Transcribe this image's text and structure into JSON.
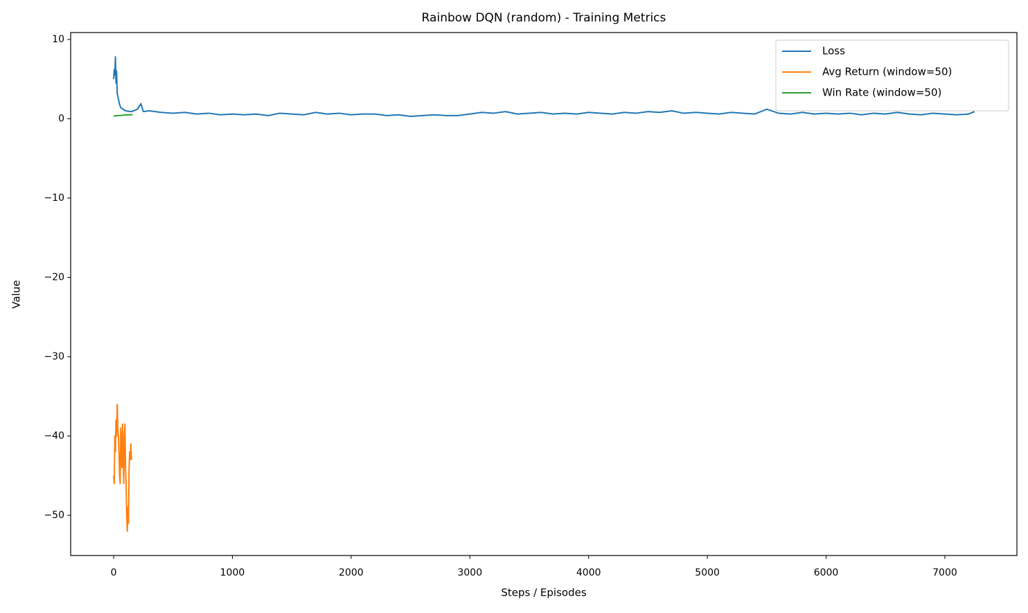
{
  "chart_data": {
    "type": "line",
    "title": "Rainbow DQN (random) - Training Metrics",
    "xlabel": "Steps / Episodes",
    "ylabel": "Value",
    "xlim": [
      -362,
      7607
    ],
    "ylim": [
      -55.07,
      10.87
    ],
    "xticks": [
      0,
      1000,
      2000,
      3000,
      4000,
      5000,
      6000,
      7000
    ],
    "yticks": [
      {
        "value": -50,
        "label": "−50"
      },
      {
        "value": -40,
        "label": "−40"
      },
      {
        "value": -30,
        "label": "−30"
      },
      {
        "value": -20,
        "label": "−20"
      },
      {
        "value": -10,
        "label": "−10"
      },
      0,
      10
    ],
    "legend": "upper right",
    "series": [
      {
        "name": "Loss",
        "color": "#1f77b4",
        "x": [
          0,
          5,
          10,
          15,
          20,
          25,
          30,
          40,
          50,
          60,
          80,
          100,
          150,
          200,
          230,
          250,
          300,
          400,
          500,
          600,
          700,
          800,
          900,
          1000,
          1100,
          1200,
          1300,
          1400,
          1500,
          1600,
          1700,
          1800,
          1900,
          2000,
          2100,
          2200,
          2300,
          2400,
          2500,
          2600,
          2700,
          2800,
          2900,
          3000,
          3100,
          3200,
          3300,
          3400,
          3500,
          3600,
          3700,
          3800,
          3900,
          4000,
          4100,
          4200,
          4300,
          4400,
          4500,
          4600,
          4700,
          4800,
          4900,
          5000,
          5100,
          5200,
          5300,
          5400,
          5500,
          5600,
          5700,
          5800,
          5900,
          6000,
          6100,
          6200,
          6300,
          6400,
          6500,
          6600,
          6700,
          6800,
          6900,
          7000,
          7100,
          7200,
          7250
        ],
        "values": [
          5.0,
          6.2,
          5.5,
          7.8,
          4.5,
          6.0,
          3.2,
          2.5,
          1.8,
          1.4,
          1.2,
          1.0,
          0.9,
          1.2,
          1.9,
          0.9,
          1.0,
          0.8,
          0.7,
          0.8,
          0.6,
          0.7,
          0.5,
          0.6,
          0.5,
          0.6,
          0.4,
          0.7,
          0.6,
          0.5,
          0.8,
          0.6,
          0.7,
          0.5,
          0.6,
          0.6,
          0.4,
          0.5,
          0.3,
          0.4,
          0.5,
          0.4,
          0.4,
          0.6,
          0.8,
          0.7,
          0.9,
          0.6,
          0.7,
          0.8,
          0.6,
          0.7,
          0.6,
          0.8,
          0.7,
          0.6,
          0.8,
          0.7,
          0.9,
          0.8,
          1.0,
          0.7,
          0.8,
          0.7,
          0.6,
          0.8,
          0.7,
          0.6,
          1.2,
          0.7,
          0.6,
          0.8,
          0.6,
          0.7,
          0.6,
          0.7,
          0.5,
          0.7,
          0.6,
          0.8,
          0.6,
          0.5,
          0.7,
          0.6,
          0.5,
          0.6,
          0.9
        ]
      },
      {
        "name": "Avg Return (window=50)",
        "color": "#ff7f0e",
        "x": [
          0,
          5,
          10,
          15,
          20,
          25,
          30,
          35,
          40,
          45,
          50,
          55,
          60,
          65,
          70,
          75,
          80,
          85,
          90,
          95,
          100,
          105,
          110,
          115,
          120,
          125,
          130,
          135,
          140,
          145,
          150
        ],
        "values": [
          -45,
          -46,
          -40,
          -42,
          -38,
          -40,
          -36,
          -39,
          -40,
          -42,
          -45,
          -46,
          -39,
          -41,
          -44,
          -38.5,
          -42,
          -46,
          -40,
          -38.5,
          -44,
          -46,
          -50,
          -52,
          -49,
          -51,
          -44,
          -42,
          -43,
          -41,
          -43
        ]
      },
      {
        "name": "Win Rate (window=50)",
        "color": "#2ca02c",
        "x": [
          0,
          20,
          40,
          60,
          80,
          100,
          120,
          140,
          160
        ],
        "values": [
          0.35,
          0.38,
          0.4,
          0.42,
          0.45,
          0.5,
          0.48,
          0.52,
          0.5
        ]
      }
    ]
  }
}
